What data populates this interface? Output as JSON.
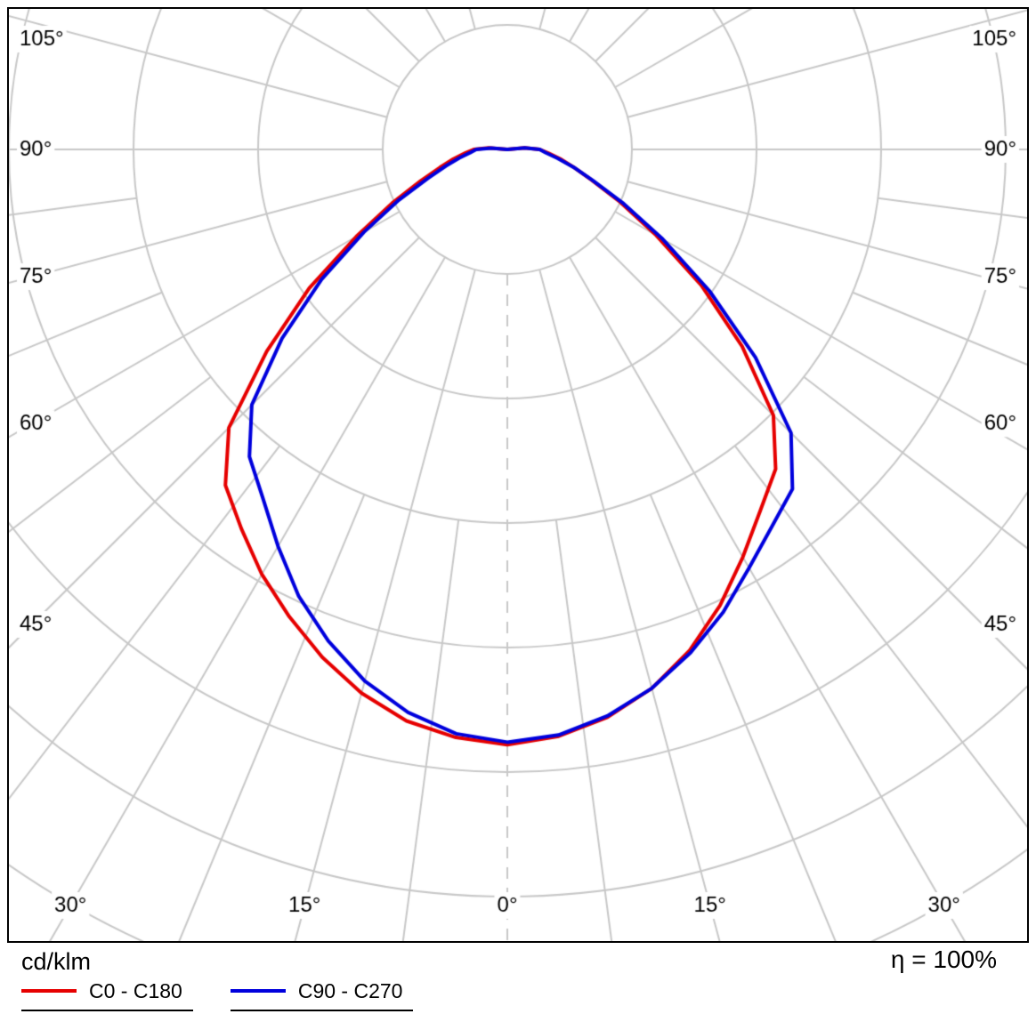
{
  "footer": {
    "unit": "cd/klm",
    "efficiency": "η = 100%"
  },
  "axis": {
    "side_labels": [
      "105°",
      "90°",
      "75°",
      "60°",
      "45°"
    ],
    "side_label_angles_deg": [
      105,
      90,
      75,
      60,
      45
    ],
    "bottom_labels": [
      "30°",
      "15°",
      "0°",
      "15°",
      "30°"
    ],
    "bottom_label_angles_deg": [
      -30,
      -15,
      0,
      15,
      30
    ]
  },
  "chart_data": {
    "type": "polar",
    "subtype": "luminous-intensity-distribution",
    "unit": "cd/klm",
    "radial_axis_max_cd_klm": 800,
    "grid": {
      "color": "#c8c8c8",
      "ring_values_cd_klm": [
        100,
        200,
        300,
        400,
        500,
        600,
        700,
        800
      ],
      "spoke_step_deg": 15,
      "minor_spoke_step_deg": 7.5,
      "center_axis_dashed": true
    },
    "angles_deg": [
      0,
      5,
      10,
      15,
      20,
      25,
      30,
      35,
      40,
      45,
      50,
      55,
      60,
      65,
      70,
      75,
      80,
      85,
      90,
      95,
      100
    ],
    "series": [
      {
        "name": "C0 - C180",
        "color": "#e60000",
        "planes": {
          "right": "C0",
          "left": "C180"
        },
        "right_values": [
          478,
          473,
          463,
          448,
          428,
          404,
          378,
          354,
          335,
          302,
          246,
          190,
          138,
          100,
          72,
          55,
          43,
          33,
          26,
          14,
          0
        ],
        "left_values": [
          478,
          474,
          466,
          452,
          434,
          414,
          394,
          372,
          352,
          316,
          252,
          194,
          140,
          102,
          74,
          56,
          44,
          34,
          27,
          15,
          0
        ]
      },
      {
        "name": "C90 - C270",
        "color": "#0000dd",
        "planes": {
          "right": "C90",
          "left": "C270"
        },
        "right_values": [
          476,
          472,
          462,
          448,
          430,
          410,
          388,
          370,
          356,
          322,
          260,
          198,
          144,
          103,
          73,
          55,
          41,
          31,
          26,
          14,
          0
        ],
        "left_values": [
          476,
          471,
          459,
          442,
          420,
          396,
          368,
          342,
          322,
          290,
          236,
          182,
          133,
          96,
          68,
          51,
          39,
          30,
          25,
          13,
          0
        ]
      }
    ],
    "efficiency": "η = 100%"
  }
}
